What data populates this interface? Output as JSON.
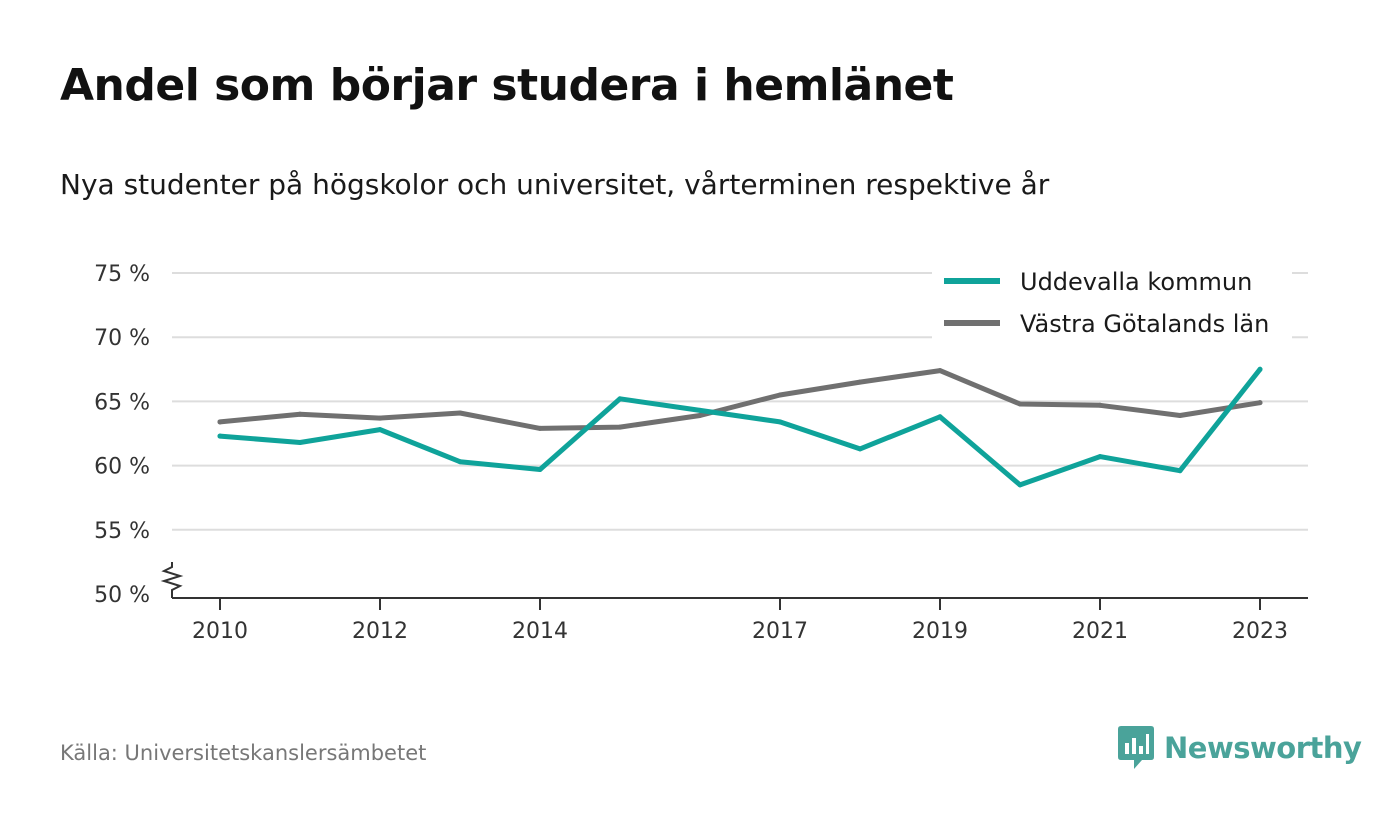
{
  "header": {
    "title": "Andel som börjar studera i hemlänet",
    "subtitle": "Nya studenter på högskolor och universitet, vårterminen respektive år"
  },
  "footer": {
    "source": "Källa: Universitetskanslersämbetet",
    "brand": "Newsworthy"
  },
  "colors": {
    "uddevalla": "#0fa39a",
    "vastra_gotaland": "#707070",
    "brand": "#4aa39a",
    "grid": "#dddddd",
    "axis": "#333333"
  },
  "icons": {
    "brand_logo": "bar-chart-speech-bubble-icon"
  },
  "chart_data": {
    "type": "line",
    "x": [
      2010,
      2011,
      2012,
      2013,
      2014,
      2015,
      2016,
      2017,
      2018,
      2019,
      2020,
      2021,
      2022,
      2023
    ],
    "x_tick_labels": [
      "2010",
      "2012",
      "2014",
      "2017",
      "2019",
      "2021",
      "2023"
    ],
    "y_tick_labels": [
      "50 %",
      "55 %",
      "60 %",
      "65 %",
      "70 %",
      "75 %"
    ],
    "y_ticks": [
      50,
      55,
      60,
      65,
      70,
      75
    ],
    "ylim": [
      50,
      75
    ],
    "xlim": [
      2009.4,
      2023.6
    ],
    "y_axis_break": true,
    "grid": "horizontal",
    "legend_position": "top-right",
    "series": [
      {
        "name": "Uddevalla kommun",
        "key": "uddevalla",
        "values": [
          62.3,
          61.8,
          62.8,
          60.3,
          59.7,
          65.2,
          64.3,
          63.4,
          61.3,
          63.8,
          58.5,
          60.7,
          59.6,
          67.5
        ]
      },
      {
        "name": "Västra Götalands län",
        "key": "vastra_gotaland",
        "values": [
          63.4,
          64.0,
          63.7,
          64.1,
          62.9,
          63.0,
          63.9,
          65.5,
          66.5,
          67.4,
          64.8,
          64.7,
          63.9,
          64.9
        ]
      }
    ]
  }
}
